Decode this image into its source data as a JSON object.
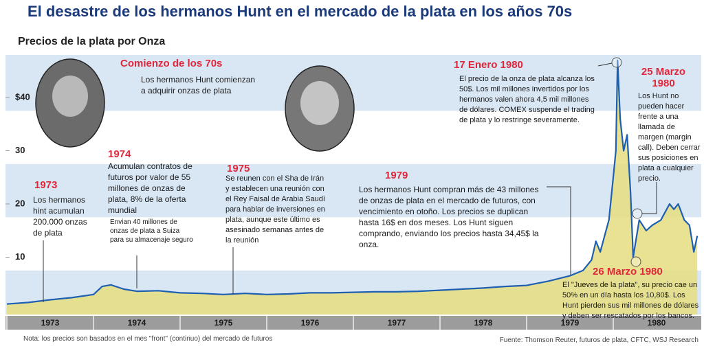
{
  "chart_data": {
    "type": "area",
    "title": "El desastre de los hermanos Hunt en el mercado de la plata en los años 70s",
    "subtitle": "Precios de la plata por Onza",
    "xlim": [
      1973,
      1981
    ],
    "xticks": [
      1973,
      1974,
      1975,
      1976,
      1977,
      1978,
      1979,
      1980
    ],
    "ylim": [
      0,
      48
    ],
    "yticks": [
      10,
      20,
      30,
      {
        "value": 40,
        "label": "$40"
      }
    ],
    "line_color": "#1f5fb0",
    "fill_color": "#e6df86",
    "x": [
      1973.0,
      1973.25,
      1973.5,
      1973.75,
      1974.0,
      1974.1,
      1974.2,
      1974.35,
      1974.5,
      1974.75,
      1975.0,
      1975.25,
      1975.5,
      1975.75,
      1976.0,
      1976.25,
      1976.5,
      1976.75,
      1977.0,
      1977.25,
      1977.5,
      1977.75,
      1978.0,
      1978.25,
      1978.5,
      1978.75,
      1979.0,
      1979.25,
      1979.5,
      1979.65,
      1979.75,
      1979.8,
      1979.85,
      1979.9,
      1979.95,
      1980.0,
      1980.03,
      1980.05,
      1980.08,
      1980.12,
      1980.16,
      1980.2,
      1980.23,
      1980.3,
      1980.38,
      1980.45,
      1980.55,
      1980.65,
      1980.7,
      1980.75,
      1980.82,
      1980.88,
      1980.93,
      1980.97
    ],
    "values": [
      1.2,
      1.5,
      2.0,
      2.4,
      3.0,
      4.5,
      4.8,
      4.0,
      3.6,
      3.7,
      3.3,
      3.2,
      3.0,
      3.2,
      3.0,
      3.1,
      3.3,
      3.3,
      3.4,
      3.5,
      3.5,
      3.6,
      3.8,
      4.0,
      4.2,
      4.5,
      4.7,
      5.5,
      6.5,
      7.5,
      9.5,
      13,
      11,
      14,
      17,
      25,
      30,
      47,
      36,
      30,
      33,
      22,
      10,
      17,
      15,
      16,
      17,
      20,
      19,
      20,
      17,
      16,
      11,
      14
    ],
    "annotations": [
      {
        "title": "Comienzo de los 70s",
        "text": "Los hermanos Hunt comienzan a adquirir onzas de plata"
      },
      {
        "title": "1973",
        "text": "Los hermanos hint acumulan 200.000 onzas de plata"
      },
      {
        "title": "1974",
        "text": "Acumulan contratos de futuros por valor de 55 millones de onzas de plata, 8% de la oferta mundial",
        "note": "Envian 40 millones de onzas de plata a Suiza para su almacenaje seguro"
      },
      {
        "title": "1975",
        "text": "Se reunen con el Sha de Irán y establecen una reunión con el Rey Faisal de Arabia Saudí para hablar de inversiones en plata, aunque este último es asesinado semanas antes de la reunión"
      },
      {
        "title": "1979",
        "text": "Los hermanos Hunt compran más de 43 millones de onzas de plata en el mercado de futuros, con vencimiento en otoño. Los precios se duplican hasta 16$ en dos meses. Los Hunt siguen comprando, enviando los precios hasta 34,45$ la onza."
      },
      {
        "title": "17 Enero 1980",
        "text": "El precio de la onza de plata alcanza los 50$. Los mil millones invertidos por los hermanos valen ahora 4,5 mil millones de dólares. COMEX suspende el trading de plata y lo restringe severamente."
      },
      {
        "title": "25 Marzo 1980",
        "text": "Los Hunt no pueden hacer frente a una llamada de margen (margin call). Deben cerrar sus posiciones en plata a cualquier precio."
      },
      {
        "title": "26 Marzo 1980",
        "text": "El \"Jueves de la plata\", su precio cae un 50% en un día hasta los 10,80$. Los Hunt pierden sus mil millones de dólares y deben ser rescatados por los bancos."
      }
    ],
    "note": "Nota: los precios son basados en el mes \"front\" (continuo) del mercado de futuros",
    "source": "Fuente: Thomson Reuter, futuros de plata, CFTC, WSJ Research"
  }
}
